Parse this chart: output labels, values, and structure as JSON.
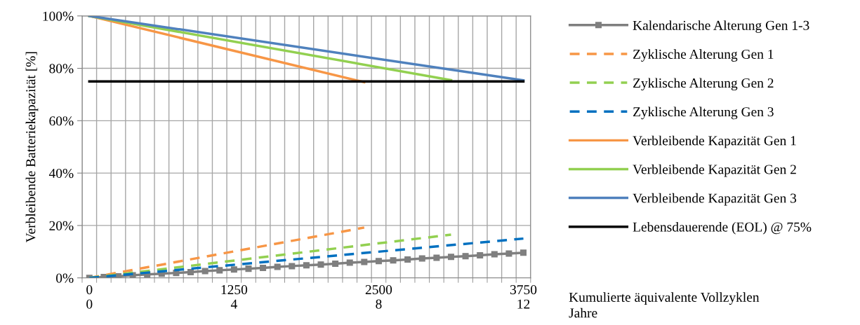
{
  "chart_data": {
    "type": "line",
    "ylabel": "Verbleibende Batteriekapazität [%]",
    "xlabel": "Kumulierte äquivalente Vollzyklen",
    "x2label": "Jahre",
    "x2lim": [
      -0.2,
      12.2
    ],
    "x2ticks": [
      0,
      4,
      8,
      12
    ],
    "x": [
      0,
      125,
      250,
      375,
      500,
      625,
      750,
      875,
      1000,
      1125,
      1250,
      1375,
      1500,
      1625,
      1750,
      1875,
      2000,
      2125,
      2250,
      2375,
      2500,
      2625,
      2750,
      2875,
      3000,
      3125,
      3250,
      3375,
      3500,
      3625,
      3750
    ],
    "series": [
      {
        "name": "Kalendarische Alterung Gen 1-3",
        "color": "#7f7f7f",
        "marker": "square",
        "line_style": "solid",
        "values": [
          0,
          0.3,
          0.6,
          1.0,
          1.3,
          1.6,
          1.9,
          2.2,
          2.6,
          2.9,
          3.2,
          3.5,
          3.8,
          4.2,
          4.5,
          4.8,
          5.1,
          5.4,
          5.8,
          6.1,
          6.4,
          6.7,
          7.0,
          7.4,
          7.7,
          8.0,
          8.3,
          8.6,
          9.0,
          9.3,
          9.6
        ]
      },
      {
        "name": "Zyklische Alterung Gen 1",
        "color": "#f79646",
        "line_style": "dashed",
        "x": [
          0,
          2375
        ],
        "values": [
          0,
          19.2
        ]
      },
      {
        "name": "Zyklische Alterung Gen 2",
        "color": "#92d050",
        "line_style": "dashed",
        "x": [
          0,
          3125
        ],
        "values": [
          0,
          16.5
        ]
      },
      {
        "name": "Zyklische Alterung Gen 3",
        "color": "#0070c0",
        "line_style": "dashed",
        "x": [
          0,
          3750
        ],
        "values": [
          0,
          15.0
        ]
      },
      {
        "name": "Verbleibende Kapazität Gen 1",
        "color": "#f79646",
        "line_style": "solid",
        "x": [
          0,
          2375
        ],
        "values": [
          100,
          74.7
        ]
      },
      {
        "name": "Verbleibende Kapazität Gen 2",
        "color": "#92d050",
        "line_style": "solid",
        "x": [
          0,
          3125
        ],
        "values": [
          100,
          75.5
        ]
      },
      {
        "name": "Verbleibende Kapazität Gen 3",
        "color": "#4f81bd",
        "line_style": "solid",
        "x": [
          0,
          3750
        ],
        "values": [
          100,
          75.4
        ]
      },
      {
        "name": "Lebensdauerende (EOL) @ 75%",
        "color": "#000000",
        "line_style": "solid",
        "x": [
          0,
          3750
        ],
        "values": [
          75,
          75
        ]
      }
    ],
    "xlim": [
      -62.5,
      3812.5
    ],
    "xticks": [
      0,
      1250,
      2500,
      3750,
      {
        "value": -62.5,
        "label": null
      },
      {
        "value": 62.5,
        "label": null
      },
      {
        "value": 187.5,
        "label": null
      },
      {
        "value": 312.5,
        "label": null
      },
      {
        "value": 437.5,
        "label": null
      },
      {
        "value": 562.5,
        "label": null
      },
      {
        "value": 687.5,
        "label": null
      },
      {
        "value": 812.5,
        "label": null
      },
      {
        "value": 937.5,
        "label": null
      },
      {
        "value": 1062.5,
        "label": null
      },
      {
        "value": 1187.5,
        "label": null
      },
      {
        "value": 1312.5,
        "label": null
      },
      {
        "value": 1437.5,
        "label": null
      },
      {
        "value": 1562.5,
        "label": null
      },
      {
        "value": 1687.5,
        "label": null
      },
      {
        "value": 1812.5,
        "label": null
      },
      {
        "value": 1937.5,
        "label": null
      },
      {
        "value": 2062.5,
        "label": null
      },
      {
        "value": 2187.5,
        "label": null
      },
      {
        "value": 2312.5,
        "label": null
      },
      {
        "value": 2437.5,
        "label": null
      },
      {
        "value": 2562.5,
        "label": null
      },
      {
        "value": 2687.5,
        "label": null
      },
      {
        "value": 2812.5,
        "label": null
      },
      {
        "value": 2937.5,
        "label": null
      },
      {
        "value": 3062.5,
        "label": null
      },
      {
        "value": 3187.5,
        "label": null
      },
      {
        "value": 3312.5,
        "label": null
      },
      {
        "value": 3437.5,
        "label": null
      },
      {
        "value": 3562.5,
        "label": null
      },
      {
        "value": 3687.5,
        "label": null
      },
      {
        "value": 3812.5,
        "label": null
      }
    ],
    "ylim": [
      0,
      100
    ],
    "yticks": [
      {
        "value": 0,
        "label": "0%"
      },
      {
        "value": 20,
        "label": "20%"
      },
      {
        "value": 40,
        "label": "40%"
      },
      {
        "value": 60,
        "label": "60%"
      },
      {
        "value": 80,
        "label": "80%"
      },
      {
        "value": 100,
        "label": "100%"
      }
    ],
    "grid": true,
    "legend": "right"
  }
}
